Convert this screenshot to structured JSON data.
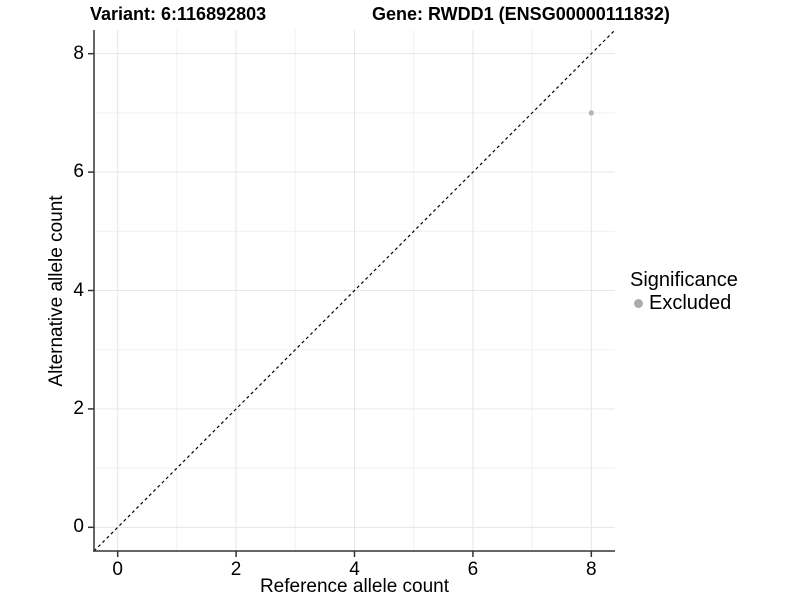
{
  "chart_data": {
    "type": "scatter",
    "title_variant": "Variant: 6:116892803",
    "title_gene": "Gene: RWDD1 (ENSG00000111832)",
    "xlabel": "Reference allele count",
    "ylabel": "Alternative allele count",
    "xlim": [
      -0.4,
      8.4
    ],
    "ylim": [
      -0.4,
      8.4
    ],
    "x_ticks": [
      0,
      2,
      4,
      6,
      8
    ],
    "y_ticks": [
      0,
      2,
      4,
      6,
      8
    ],
    "x_minor_ticks": [
      1,
      3,
      5,
      7
    ],
    "y_minor_ticks": [
      1,
      3,
      5,
      7
    ],
    "grid": true,
    "identity_line": {
      "style": "dashed",
      "from": [
        -0.4,
        -0.4
      ],
      "to": [
        8.4,
        8.4
      ]
    },
    "series": [
      {
        "name": "Excluded",
        "color": "#b4b4b4",
        "points": [
          {
            "x": 8,
            "y": 7
          }
        ]
      }
    ],
    "legend": {
      "title": "Significance",
      "position": "right",
      "items": [
        {
          "label": "Excluded",
          "color": "#acacac",
          "marker": "circle"
        }
      ]
    },
    "colors": {
      "background": "#ffffff",
      "grid_major": "#e6e6e6",
      "grid_minor": "#f1f1f1",
      "axis": "#333333",
      "identity_line": "#000000",
      "point": "#b4b4b4",
      "text": "#000000"
    }
  }
}
